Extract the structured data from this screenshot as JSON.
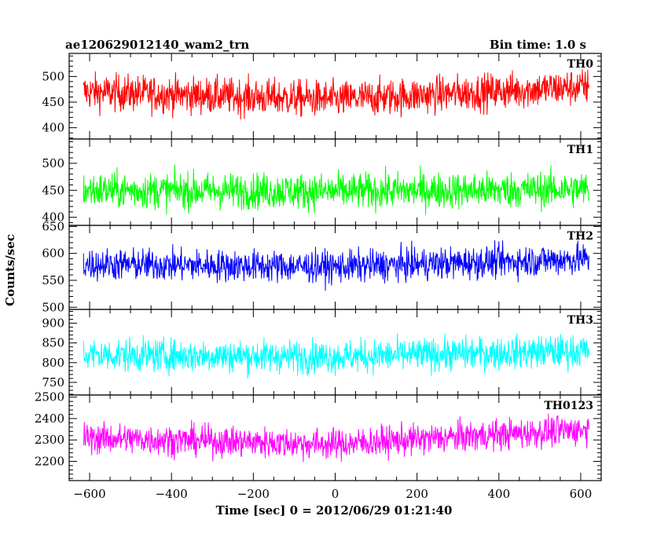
{
  "chart_data": {
    "type": "line",
    "title": "ae120629012140_wam2_trn",
    "subtitle": "Bin time: 1.0 s",
    "xlabel": "Time [sec] 0 = 2012/06/29 01:21:40",
    "ylabel": "Counts/sec",
    "xlim": [
      -650,
      650
    ],
    "x_ticks": [
      -600,
      -400,
      -200,
      0,
      200,
      400,
      600
    ],
    "x_range_data": [
      -615,
      620
    ],
    "grid": false,
    "panels": [
      {
        "name": "TH0",
        "color": "#ff0000",
        "ylim": [
          378,
          545
        ],
        "y_ticks": [
          400,
          450,
          500
        ],
        "mean_start": 470,
        "mean_mid": 455,
        "mean_end": 480,
        "noise": 30
      },
      {
        "name": "TH1",
        "color": "#00ff00",
        "ylim": [
          385,
          545
        ],
        "y_ticks": [
          400,
          450,
          500
        ],
        "mean_start": 450,
        "mean_mid": 448,
        "mean_end": 452,
        "noise": 28
      },
      {
        "name": "TH2",
        "color": "#0000ff",
        "ylim": [
          496,
          652
        ],
        "y_ticks": [
          500,
          550,
          600,
          650
        ],
        "mean_start": 580,
        "mean_mid": 575,
        "mean_end": 590,
        "noise": 25
      },
      {
        "name": "TH3",
        "color": "#00ffff",
        "ylim": [
          718,
          935
        ],
        "y_ticks": [
          750,
          800,
          850,
          900
        ],
        "mean_start": 820,
        "mean_mid": 815,
        "mean_end": 830,
        "noise": 35
      },
      {
        "name": "TH0123",
        "color": "#ff00ff",
        "ylim": [
          2110,
          2510
        ],
        "y_ticks": [
          2200,
          2300,
          2400,
          2500
        ],
        "mean_start": 2310,
        "mean_mid": 2280,
        "mean_end": 2350,
        "noise": 60
      }
    ]
  }
}
